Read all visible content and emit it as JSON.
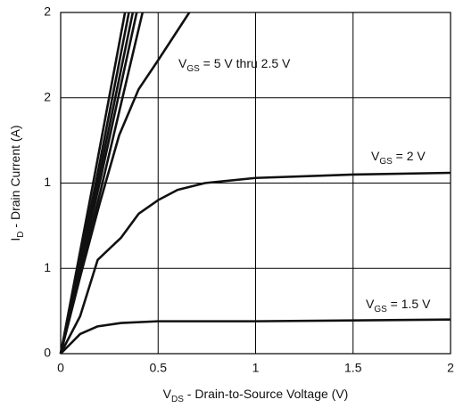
{
  "chart_data": {
    "type": "line",
    "xlabel": [
      "V",
      "DS",
      " - Drain-to-Source Voltage (V)"
    ],
    "ylabel": [
      "I",
      "D",
      " - Drain Current (A)"
    ],
    "xlim": [
      0,
      2
    ],
    "xticks": [
      0,
      0.5,
      1,
      1.5,
      2
    ],
    "ylim": [
      0,
      2
    ],
    "yticks": [
      0,
      {
        "value": 0.5,
        "label": "1"
      },
      1,
      {
        "value": 1.5,
        "label": "2"
      },
      2
    ],
    "grid": true,
    "series": [
      {
        "color": "#111111",
        "x": [
          0,
          0.17,
          0.33
        ],
        "values": [
          0,
          1.02,
          2
        ]
      },
      {
        "color": "#111111",
        "x": [
          0,
          0.18,
          0.35
        ],
        "values": [
          0,
          1.0,
          2
        ]
      },
      {
        "color": "#111111",
        "x": [
          0,
          0.19,
          0.37
        ],
        "values": [
          0,
          1.0,
          2
        ]
      },
      {
        "color": "#111111",
        "x": [
          0,
          0.2,
          0.39
        ],
        "values": [
          0,
          1.0,
          2
        ]
      },
      {
        "color": "#111111",
        "x": [
          0,
          0.21,
          0.42
        ],
        "values": [
          0,
          0.98,
          2
        ]
      },
      {
        "color": "#111111",
        "x": [
          0,
          0.1,
          0.2,
          0.3,
          0.4,
          0.5,
          0.66
        ],
        "values": [
          0,
          0.45,
          0.88,
          1.28,
          1.55,
          1.72,
          2
        ]
      },
      {
        "color": "#111111",
        "x": [
          0,
          0.1,
          0.19,
          0.31,
          0.4,
          0.5,
          0.6,
          0.74,
          1,
          1.5,
          2
        ],
        "values": [
          0,
          0.22,
          0.55,
          0.68,
          0.82,
          0.9,
          0.96,
          1.0,
          1.03,
          1.05,
          1.06
        ]
      },
      {
        "color": "#111111",
        "x": [
          0,
          0.1,
          0.19,
          0.31,
          0.5,
          1,
          2
        ],
        "values": [
          0,
          0.115,
          0.16,
          0.18,
          0.19,
          0.19,
          0.2
        ]
      }
    ],
    "annotations": [
      {
        "parts": [
          "V",
          "GS",
          " = 5 V thru 2.5 V"
        ]
      },
      {
        "parts": [
          "V",
          "GS",
          " = 2 V"
        ]
      },
      {
        "parts": [
          "V",
          "GS",
          " = 1.5 V"
        ]
      }
    ]
  }
}
